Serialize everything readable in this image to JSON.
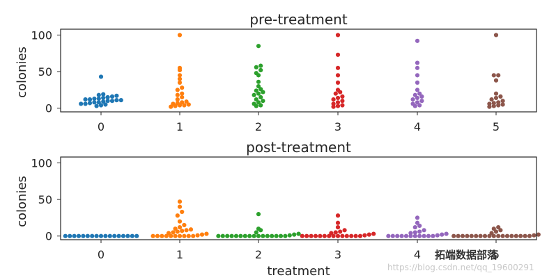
{
  "chart_data": [
    {
      "type": "scatter",
      "subtype": "swarm",
      "title": "pre-treatment",
      "xlabel": "",
      "ylabel": "colonies",
      "ylim": [
        -5,
        108
      ],
      "yticks": [
        0,
        50,
        100
      ],
      "categories": [
        "0",
        "1",
        "2",
        "3",
        "4",
        "5"
      ],
      "grid": false,
      "series": [
        {
          "category": "0",
          "color": "#1f77b4",
          "values": [
            3,
            4,
            5,
            6,
            6,
            7,
            8,
            8,
            9,
            10,
            10,
            11,
            11,
            12,
            12,
            13,
            13,
            14,
            15,
            16,
            17,
            18,
            19,
            43
          ]
        },
        {
          "category": "1",
          "color": "#ff7f0e",
          "values": [
            2,
            3,
            4,
            4,
            5,
            6,
            7,
            8,
            9,
            12,
            15,
            18,
            20,
            25,
            28,
            35,
            40,
            45,
            52,
            55,
            100
          ]
        },
        {
          "category": "2",
          "color": "#2ca02c",
          "values": [
            3,
            4,
            6,
            8,
            10,
            12,
            15,
            18,
            20,
            22,
            24,
            26,
            30,
            36,
            45,
            48,
            52,
            56,
            58,
            85
          ]
        },
        {
          "category": "3",
          "color": "#d62728",
          "values": [
            2,
            3,
            4,
            6,
            8,
            10,
            12,
            14,
            16,
            20,
            22,
            25,
            35,
            45,
            55,
            73,
            100
          ]
        },
        {
          "category": "4",
          "color": "#9467bd",
          "values": [
            3,
            4,
            6,
            8,
            10,
            12,
            14,
            16,
            18,
            20,
            25,
            35,
            45,
            55,
            62,
            92
          ]
        },
        {
          "category": "5",
          "color": "#8c564b",
          "values": [
            2,
            3,
            4,
            5,
            6,
            7,
            8,
            10,
            12,
            14,
            16,
            20,
            38,
            45,
            45,
            100
          ]
        }
      ]
    },
    {
      "type": "scatter",
      "subtype": "swarm",
      "title": "post-treatment",
      "xlabel": "treatment",
      "ylabel": "colonies",
      "ylim": [
        -5,
        108
      ],
      "yticks": [
        0,
        50,
        100
      ],
      "categories": [
        "0",
        "1",
        "2",
        "3",
        "4",
        "5"
      ],
      "grid": false,
      "series": [
        {
          "category": "0",
          "color": "#1f77b4",
          "values": [
            0,
            0,
            0,
            0,
            0,
            0,
            0,
            0,
            0,
            0,
            0,
            0,
            0,
            0,
            0,
            0,
            0
          ]
        },
        {
          "category": "1",
          "color": "#ff7f0e",
          "values": [
            0,
            0,
            0,
            0,
            0,
            0,
            0,
            0,
            0,
            0,
            1,
            2,
            3,
            4,
            5,
            6,
            7,
            8,
            9,
            10,
            12,
            15,
            20,
            28,
            33,
            40,
            47
          ]
        },
        {
          "category": "2",
          "color": "#2ca02c",
          "values": [
            0,
            0,
            0,
            0,
            0,
            0,
            0,
            0,
            0,
            0,
            0,
            0,
            0,
            0,
            0,
            0,
            1,
            2,
            3,
            5,
            8,
            10,
            30
          ]
        },
        {
          "category": "3",
          "color": "#d62728",
          "values": [
            0,
            0,
            0,
            0,
            0,
            0,
            0,
            0,
            0,
            0,
            0,
            0,
            0,
            0,
            1,
            2,
            3,
            4,
            5,
            6,
            8,
            12,
            18,
            28
          ]
        },
        {
          "category": "4",
          "color": "#9467bd",
          "values": [
            0,
            0,
            0,
            0,
            0,
            0,
            0,
            0,
            0,
            0,
            0,
            1,
            2,
            3,
            4,
            5,
            6,
            8,
            12,
            14,
            18,
            25
          ]
        },
        {
          "category": "5",
          "color": "#8c564b",
          "values": [
            0,
            0,
            0,
            0,
            0,
            0,
            0,
            0,
            0,
            0,
            0,
            0,
            0,
            0,
            0,
            0,
            0,
            0,
            1,
            2,
            4,
            6,
            8,
            10,
            12
          ]
        }
      ]
    }
  ],
  "watermark": {
    "logo_text": "拓端数据部落",
    "url_text": "https://blog.csdn.net/qq_19600291"
  }
}
